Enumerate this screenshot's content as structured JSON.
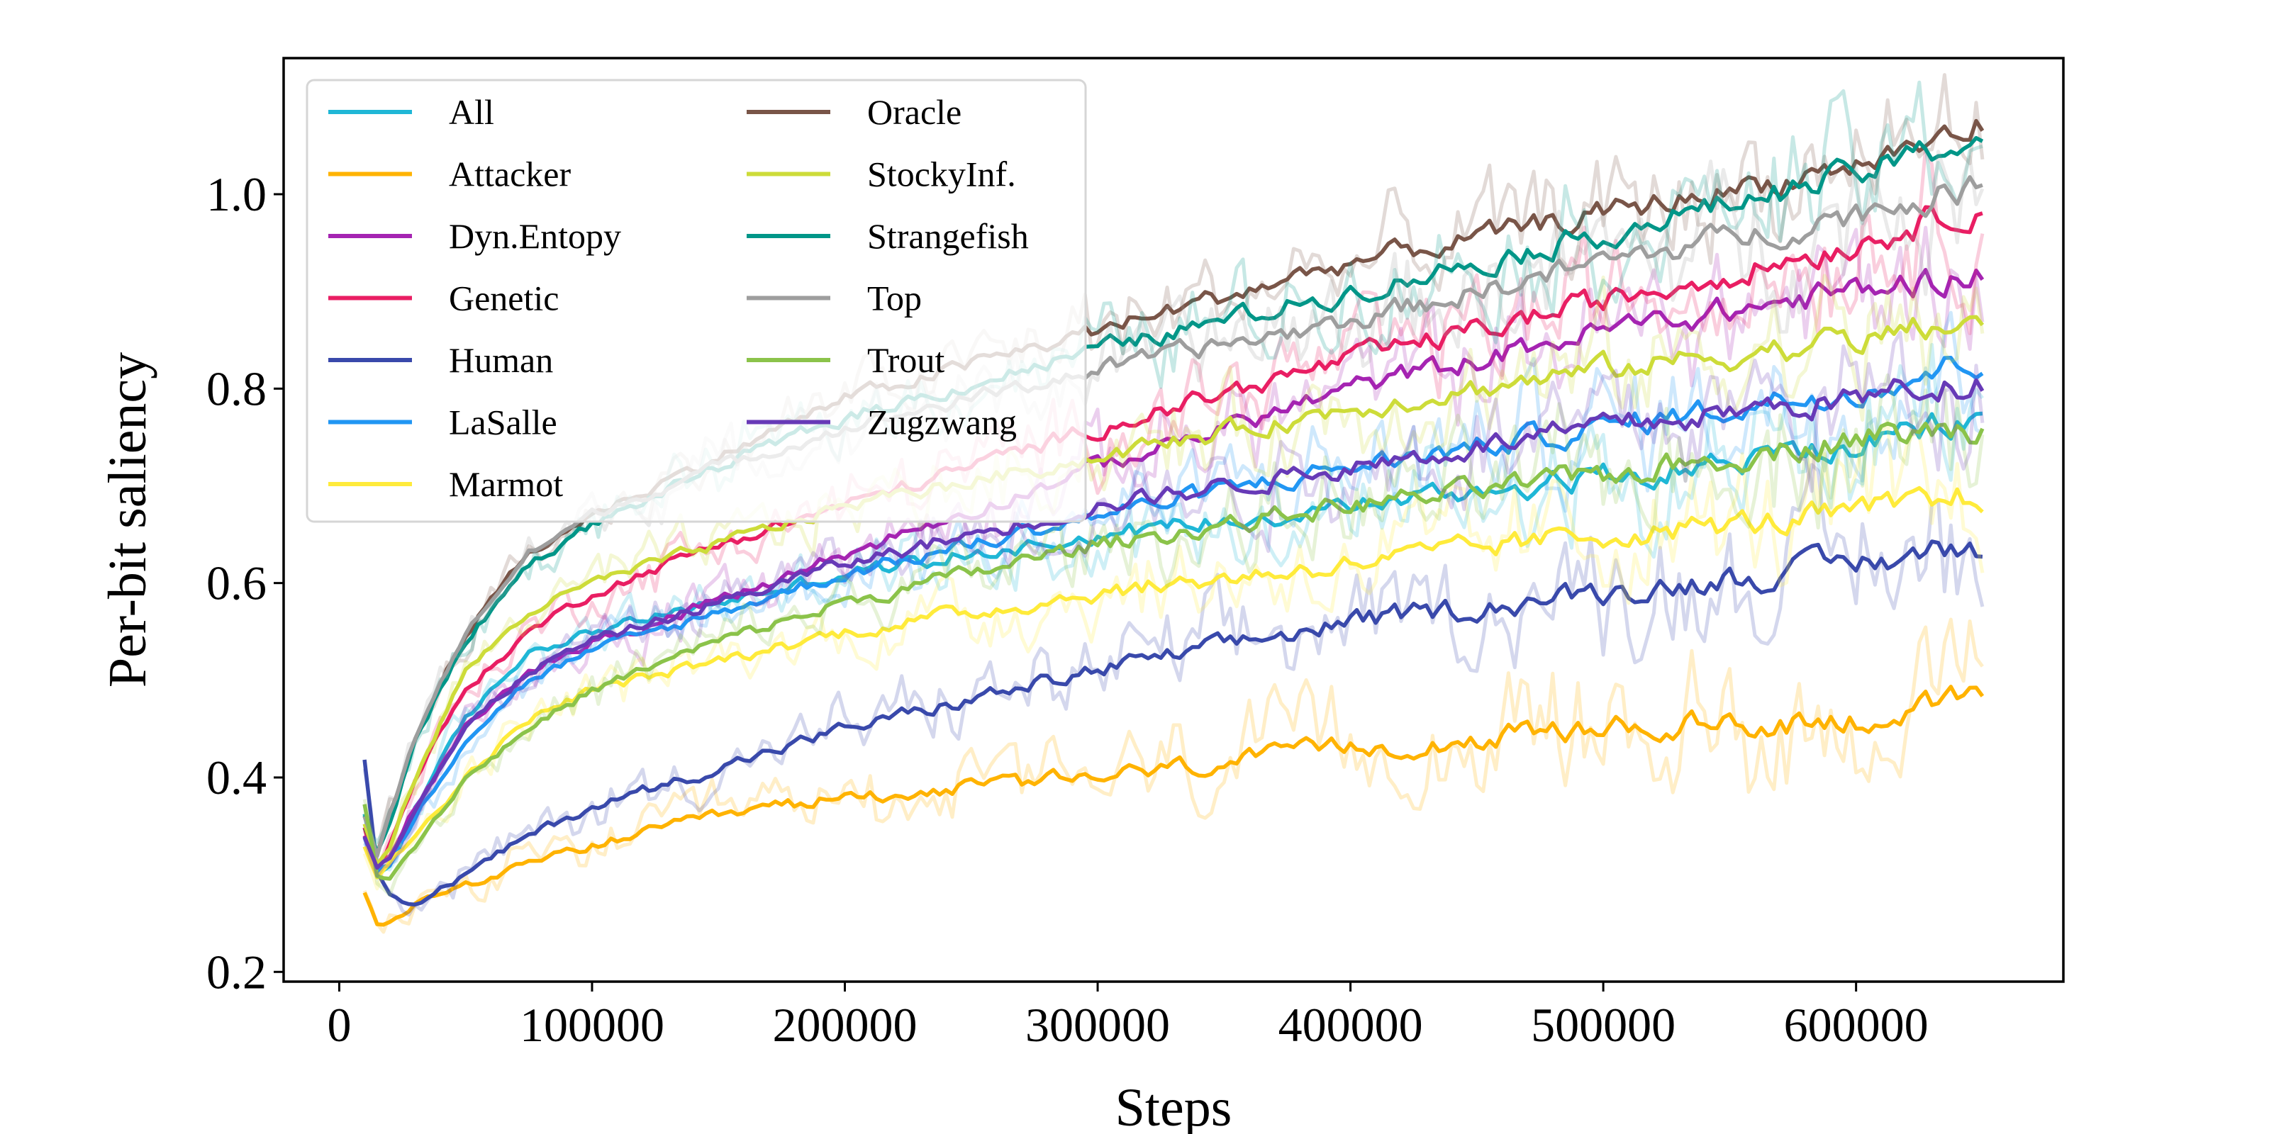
{
  "chart_data": {
    "type": "line",
    "title": "",
    "xlabel": "Steps",
    "ylabel": "Per-bit saliency",
    "xlim": [
      -22000,
      682000
    ],
    "ylim": [
      0.19,
      1.14
    ],
    "xticks": [
      0,
      100000,
      200000,
      300000,
      400000,
      500000,
      600000
    ],
    "xtick_labels": [
      "0",
      "100000",
      "200000",
      "300000",
      "400000",
      "500000",
      "600000"
    ],
    "yticks": [
      0.2,
      0.4,
      0.6,
      0.8,
      1.0
    ],
    "ytick_labels": [
      "0.2",
      "0.4",
      "0.6",
      "0.8",
      "1.0"
    ],
    "legend_position": "top-left",
    "legend_columns": 2,
    "x": [
      10000,
      15000,
      20000,
      30000,
      50000,
      75000,
      100000,
      150000,
      200000,
      300000,
      400000,
      500000,
      600000,
      650000
    ],
    "series": [
      {
        "name": "All",
        "color": "#1fb7d6",
        "values": [
          0.36,
          0.3,
          0.31,
          0.37,
          0.46,
          0.53,
          0.55,
          0.58,
          0.61,
          0.65,
          0.68,
          0.71,
          0.74,
          0.77
        ]
      },
      {
        "name": "Attacker",
        "color": "#ffb300",
        "values": [
          0.28,
          0.25,
          0.25,
          0.27,
          0.29,
          0.31,
          0.33,
          0.36,
          0.38,
          0.4,
          0.43,
          0.45,
          0.46,
          0.48
        ]
      },
      {
        "name": "Dyn.Entopy",
        "color": "#a524b2",
        "values": [
          0.34,
          0.31,
          0.32,
          0.37,
          0.45,
          0.51,
          0.54,
          0.58,
          0.63,
          0.72,
          0.8,
          0.86,
          0.9,
          0.92
        ]
      },
      {
        "name": "Genetic",
        "color": "#e91e63",
        "values": [
          0.35,
          0.3,
          0.33,
          0.4,
          0.49,
          0.55,
          0.59,
          0.64,
          0.68,
          0.76,
          0.83,
          0.89,
          0.95,
          0.99
        ]
      },
      {
        "name": "Human",
        "color": "#3949ab",
        "values": [
          0.42,
          0.3,
          0.28,
          0.27,
          0.3,
          0.34,
          0.37,
          0.41,
          0.45,
          0.51,
          0.56,
          0.59,
          0.62,
          0.64
        ]
      },
      {
        "name": "LaSalle",
        "color": "#2196f3",
        "values": [
          0.34,
          0.3,
          0.31,
          0.36,
          0.44,
          0.5,
          0.53,
          0.57,
          0.61,
          0.67,
          0.72,
          0.76,
          0.8,
          0.83
        ]
      },
      {
        "name": "Marmot",
        "color": "#ffeb3b",
        "values": [
          0.33,
          0.3,
          0.31,
          0.34,
          0.4,
          0.46,
          0.49,
          0.52,
          0.55,
          0.59,
          0.62,
          0.65,
          0.67,
          0.69
        ]
      },
      {
        "name": "Oracle",
        "color": "#795548",
        "values": [
          0.35,
          0.32,
          0.36,
          0.44,
          0.55,
          0.63,
          0.67,
          0.73,
          0.79,
          0.86,
          0.93,
          0.98,
          1.03,
          1.07
        ]
      },
      {
        "name": "StockyInf.",
        "color": "#cddc39",
        "values": [
          0.35,
          0.31,
          0.33,
          0.4,
          0.51,
          0.57,
          0.6,
          0.64,
          0.68,
          0.73,
          0.78,
          0.82,
          0.85,
          0.87
        ]
      },
      {
        "name": "Strangefish",
        "color": "#009688",
        "values": [
          0.36,
          0.32,
          0.35,
          0.44,
          0.54,
          0.62,
          0.66,
          0.72,
          0.77,
          0.84,
          0.9,
          0.96,
          1.02,
          1.06
        ]
      },
      {
        "name": "Top",
        "color": "#9e9e9e",
        "values": [
          0.36,
          0.32,
          0.36,
          0.44,
          0.55,
          0.63,
          0.67,
          0.72,
          0.76,
          0.82,
          0.87,
          0.93,
          0.98,
          1.01
        ]
      },
      {
        "name": "Trout",
        "color": "#8bc34a",
        "values": [
          0.37,
          0.3,
          0.3,
          0.33,
          0.4,
          0.45,
          0.49,
          0.54,
          0.58,
          0.64,
          0.68,
          0.71,
          0.75,
          0.76
        ]
      },
      {
        "name": "Zugzwang",
        "color": "#673ab7",
        "values": [
          0.34,
          0.31,
          0.32,
          0.37,
          0.45,
          0.51,
          0.54,
          0.58,
          0.62,
          0.68,
          0.72,
          0.76,
          0.79,
          0.81
        ]
      }
    ]
  }
}
